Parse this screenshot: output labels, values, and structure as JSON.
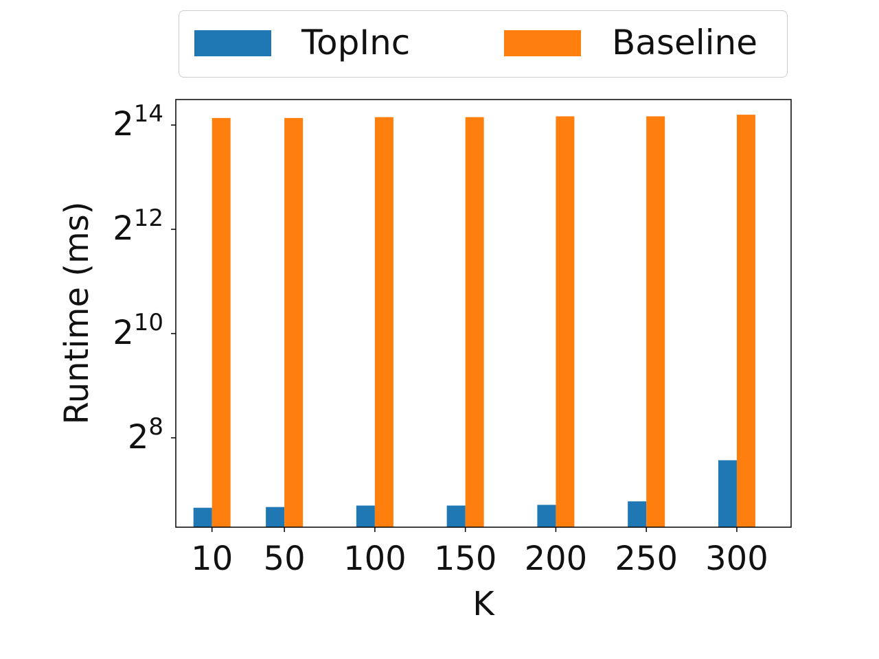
{
  "chart_data": {
    "type": "bar",
    "categories": [
      "10",
      "50",
      "100",
      "150",
      "200",
      "250",
      "300"
    ],
    "x_positions": [
      10,
      50,
      100,
      150,
      200,
      250,
      300
    ],
    "series": [
      {
        "name": "TopInc",
        "color": "#1f77b4",
        "values": [
          101,
          102,
          104,
          104,
          105,
          110,
          190
        ]
      },
      {
        "name": "Baseline",
        "color": "#ff7f0e",
        "values": [
          18000,
          18000,
          18200,
          18200,
          18400,
          18400,
          18800
        ]
      }
    ],
    "xlabel": "K",
    "ylabel": "Runtime (ms)",
    "yscale": "log2",
    "ylim": [
      78,
      23000
    ],
    "yticks": [
      {
        "base": "2",
        "exp": "8",
        "value": 256
      },
      {
        "base": "2",
        "exp": "10",
        "value": 1024
      },
      {
        "base": "2",
        "exp": "12",
        "value": 4096
      },
      {
        "base": "2",
        "exp": "14",
        "value": 16384
      }
    ],
    "legend": {
      "position": "top-center",
      "entries": [
        "TopInc",
        "Baseline"
      ]
    },
    "grid": false
  }
}
